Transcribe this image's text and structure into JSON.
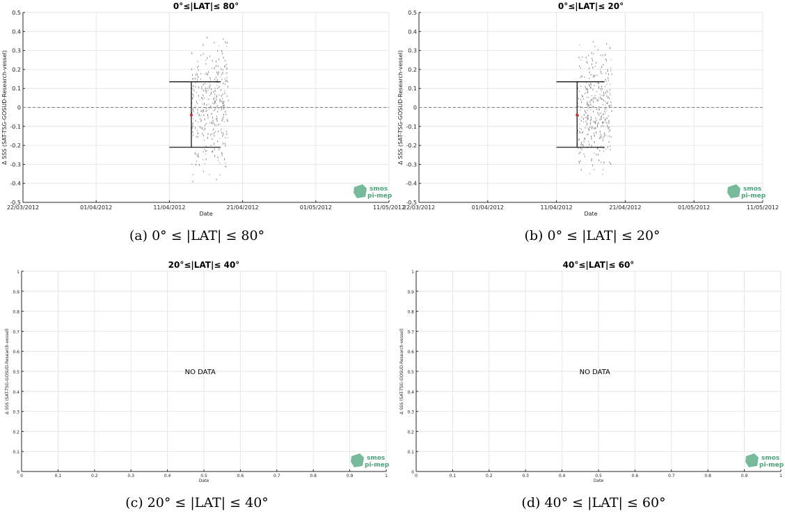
{
  "chart_data": [
    {
      "id": "a",
      "type": "scatter",
      "title": "0°≤|LAT|≤ 80°",
      "caption": "(a) 0° ≤ |LAT| ≤ 80°",
      "xlabel": "Date",
      "ylabel": "Δ SSS (SAT-TSG-GOSUD-Research-vessel)",
      "x_is_date": true,
      "xlim": [
        "2012-03-22",
        "2012-05-11"
      ],
      "xticks": [
        "2012-03-22",
        "2012-04-01",
        "2012-04-11",
        "2012-04-21",
        "2012-05-01",
        "2012-05-11"
      ],
      "xtick_labels": [
        "22/03/2012",
        "01/04/2012",
        "11/04/2012",
        "21/04/2012",
        "01/05/2012",
        "11/05/2012"
      ],
      "ylim": [
        -0.5,
        0.5
      ],
      "yticks": [
        -0.5,
        -0.4,
        -0.3,
        -0.2,
        -0.1,
        0,
        0.1,
        0.2,
        0.3,
        0.4,
        0.5
      ],
      "ytick_labels": [
        "-0.5",
        "-0.4",
        "-0.3",
        "-0.2",
        "-0.1",
        "0",
        "0.1",
        "0.2",
        "0.3",
        "0.4",
        "0.5"
      ],
      "grid": true,
      "zero_line": 0,
      "summary": {
        "x": "2012-04-14",
        "mean": -0.04,
        "upper": 0.135,
        "lower": -0.21,
        "whisker_from": "2012-04-11",
        "whisker_to": "2012-04-18"
      },
      "scatter_window": [
        "2012-04-14",
        "2012-04-19"
      ],
      "scatter_yrange": [
        -0.45,
        0.42
      ],
      "no_data": "",
      "logo": [
        "smos",
        "pi-mep"
      ]
    },
    {
      "id": "b",
      "type": "scatter",
      "title": "0°≤|LAT|≤ 20°",
      "caption": "(b) 0° ≤ |LAT| ≤ 20°",
      "xlabel": "Date",
      "ylabel": "Δ SSS (SAT-TSG-GOSUD-Research-vessel)",
      "x_is_date": true,
      "xlim": [
        "2012-03-22",
        "2012-05-11"
      ],
      "xticks": [
        "2012-03-22",
        "2012-04-01",
        "2012-04-11",
        "2012-04-21",
        "2012-05-01",
        "2012-05-11"
      ],
      "xtick_labels": [
        "22/03/2012",
        "01/04/2012",
        "11/04/2012",
        "21/04/2012",
        "01/05/2012",
        "11/05/2012"
      ],
      "ylim": [
        -0.5,
        0.5
      ],
      "yticks": [
        -0.5,
        -0.4,
        -0.3,
        -0.2,
        -0.1,
        0,
        0.1,
        0.2,
        0.3,
        0.4,
        0.5
      ],
      "ytick_labels": [
        "-0.5",
        "-0.4",
        "-0.3",
        "-0.2",
        "-0.1",
        "0",
        "0.1",
        "0.2",
        "0.3",
        "0.4",
        "0.5"
      ],
      "grid": true,
      "zero_line": 0,
      "summary": {
        "x": "2012-04-14",
        "mean": -0.04,
        "upper": 0.135,
        "lower": -0.21,
        "whisker_from": "2012-04-11",
        "whisker_to": "2012-04-18"
      },
      "scatter_window": [
        "2012-04-14",
        "2012-04-19"
      ],
      "scatter_yrange": [
        -0.45,
        0.42
      ],
      "no_data": "",
      "logo": [
        "smos",
        "pi-mep"
      ]
    },
    {
      "id": "c",
      "type": "scatter",
      "title": "20°≤|LAT|≤ 40°",
      "caption": "(c) 20° ≤ |LAT| ≤ 40°",
      "xlabel": "Date",
      "ylabel": "Δ SSS (SAT-TSG-GOSUD-Research-vessel)",
      "x_is_date": false,
      "xlim": [
        0,
        1
      ],
      "xticks": [
        0,
        0.1,
        0.2,
        0.3,
        0.4,
        0.5,
        0.6,
        0.7,
        0.8,
        0.9,
        1
      ],
      "xtick_labels": [
        "0",
        "0.1",
        "0.2",
        "0.3",
        "0.4",
        "0.5",
        "0.6",
        "0.7",
        "0.8",
        "0.9",
        "1"
      ],
      "ylim": [
        0,
        1
      ],
      "yticks": [
        0,
        0.1,
        0.2,
        0.3,
        0.4,
        0.5,
        0.6,
        0.7,
        0.8,
        0.9,
        1
      ],
      "ytick_labels": [
        "0",
        "0.1",
        "0.2",
        "0.3",
        "0.4",
        "0.5",
        "0.6",
        "0.7",
        "0.8",
        "0.9",
        "1"
      ],
      "grid": true,
      "no_data": "NO DATA",
      "logo": [
        "smos",
        "pi-mep"
      ]
    },
    {
      "id": "d",
      "type": "scatter",
      "title": "40°≤|LAT|≤ 60°",
      "caption": "(d) 40° ≤ |LAT| ≤ 60°",
      "xlabel": "Date",
      "ylabel": "Δ SSS (SAT-TSG-GOSUD-Research-vessel)",
      "x_is_date": false,
      "xlim": [
        0,
        1
      ],
      "xticks": [
        0,
        0.1,
        0.2,
        0.3,
        0.4,
        0.5,
        0.6,
        0.7,
        0.8,
        0.9,
        1
      ],
      "xtick_labels": [
        "0",
        "0.1",
        "0.2",
        "0.3",
        "0.4",
        "0.5",
        "0.6",
        "0.7",
        "0.8",
        "0.9",
        "1"
      ],
      "ylim": [
        0,
        1
      ],
      "yticks": [
        0,
        0.1,
        0.2,
        0.3,
        0.4,
        0.5,
        0.6,
        0.7,
        0.8,
        0.9,
        1
      ],
      "ytick_labels": [
        "0",
        "0.1",
        "0.2",
        "0.3",
        "0.4",
        "0.5",
        "0.6",
        "0.7",
        "0.8",
        "0.9",
        "1"
      ],
      "grid": true,
      "no_data": "NO DATA",
      "logo": [
        "smos",
        "pi-mep"
      ]
    }
  ],
  "colors": {
    "axis": "#262626",
    "grid": "#e6e6e6",
    "scatter": "#8a8a8a",
    "errorbar": "#000000",
    "mean_marker": "#d62728",
    "zero_line": "#808080",
    "logo": "#4aa37a"
  }
}
